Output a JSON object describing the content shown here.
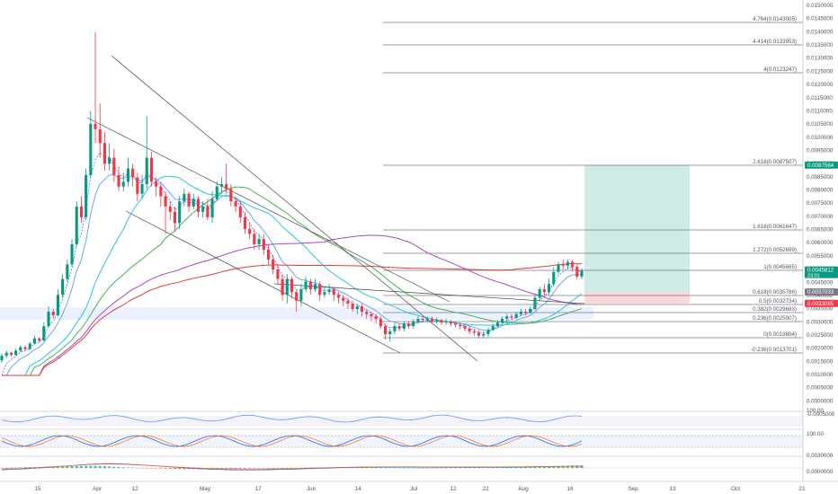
{
  "chart_data": {
    "type": "candlestick",
    "scale": "log",
    "grid": false,
    "x_labels": [
      "15",
      "Apr",
      "12",
      "May",
      "17",
      "Jun",
      "14",
      "Jul",
      "12",
      "22",
      "Aug",
      "16",
      "Sep",
      "13",
      "Oct",
      "21"
    ],
    "y_tick_labels": [
      "0.0150000",
      "0.0145000",
      "0.0140000",
      "0.0135000",
      "0.0130000",
      "0.0125000",
      "0.0120000",
      "0.0115000",
      "0.0110000",
      "0.0105000",
      "0.0100000",
      "0.0095000",
      "0.0090000",
      "0.0085000",
      "0.0080000",
      "0.0075000",
      "0.0070000",
      "0.0065000",
      "0.0060000",
      "0.0055000",
      "0.0050000",
      "0.0045000",
      "0.0040000",
      "0.0035000",
      "0.0030000",
      "0.0025000",
      "0.0020000",
      "0.0015000",
      "0.0010000",
      "0.0005000",
      "0.0000000",
      "-0.0005000"
    ],
    "fib_levels": [
      {
        "label": "4.764(0.0143005)",
        "value": 0.0143005
      },
      {
        "label": "4.414(0.0133953)",
        "value": 0.0133953
      },
      {
        "label": "4(0.0123247)",
        "value": 0.0123247
      },
      {
        "label": "2.618(0.0087507)",
        "value": 0.0087507
      },
      {
        "label": "1.618(0.0061647)",
        "value": 0.0061647
      },
      {
        "label": "1.272(0.0052699)",
        "value": 0.0052699
      },
      {
        "label": "1(0.0045665)",
        "value": 0.0045665
      },
      {
        "label": "0.618(0.0035786)",
        "value": 0.0035786
      },
      {
        "label": "0.5(0.0032734)",
        "value": 0.0032734
      },
      {
        "label": "0.382(0.0029683)",
        "value": 0.0029683
      },
      {
        "label": "0.236(0.0025907)",
        "value": 0.0025907
      },
      {
        "label": "0(0.0019804)",
        "value": 0.0019804
      },
      {
        "label": "-0.236(0.0013701)",
        "value": 0.0013701
      }
    ],
    "price_tags": [
      {
        "text": "0.0087564",
        "value": 0.0087564,
        "color": "#089981"
      },
      {
        "text": "0.0045812",
        "value": 0.0045812,
        "color": "#089981",
        "sub": "23:01"
      },
      {
        "text": "0.0037033",
        "value": 0.0037033,
        "color": "#787b86"
      },
      {
        "text": "0.0033085",
        "value": 0.0033085,
        "color": "#f23645"
      }
    ],
    "position": {
      "entry": 0.0037033,
      "target": 0.0087564,
      "stop": 0.0033085
    },
    "candles": [
      {
        "o": 0.00115,
        "c": 0.00128,
        "h": 0.00135,
        "l": 0.00108
      },
      {
        "o": 0.00128,
        "c": 0.00138,
        "h": 0.00145,
        "l": 0.00122
      },
      {
        "o": 0.00138,
        "c": 0.00131,
        "h": 0.00142,
        "l": 0.00125
      },
      {
        "o": 0.00131,
        "c": 0.00145,
        "h": 0.00152,
        "l": 0.00128
      },
      {
        "o": 0.00145,
        "c": 0.00158,
        "h": 0.00165,
        "l": 0.0014
      },
      {
        "o": 0.00158,
        "c": 0.0015,
        "h": 0.00163,
        "l": 0.00145
      },
      {
        "o": 0.0015,
        "c": 0.00172,
        "h": 0.0018,
        "l": 0.00148
      },
      {
        "o": 0.00172,
        "c": 0.00195,
        "h": 0.00205,
        "l": 0.00168
      },
      {
        "o": 0.00195,
        "c": 0.00185,
        "h": 0.002,
        "l": 0.00178
      },
      {
        "o": 0.00185,
        "c": 0.0024,
        "h": 0.00255,
        "l": 0.00182
      },
      {
        "o": 0.0024,
        "c": 0.003,
        "h": 0.0032,
        "l": 0.00235
      },
      {
        "o": 0.003,
        "c": 0.00285,
        "h": 0.0031,
        "l": 0.0027
      },
      {
        "o": 0.00285,
        "c": 0.0036,
        "h": 0.0038,
        "l": 0.0028
      },
      {
        "o": 0.0036,
        "c": 0.0042,
        "h": 0.0044,
        "l": 0.0035
      },
      {
        "o": 0.0042,
        "c": 0.0048,
        "h": 0.005,
        "l": 0.0041
      },
      {
        "o": 0.0048,
        "c": 0.0056,
        "h": 0.0058,
        "l": 0.0047
      },
      {
        "o": 0.0056,
        "c": 0.007,
        "h": 0.0072,
        "l": 0.0055
      },
      {
        "o": 0.007,
        "c": 0.0066,
        "h": 0.0074,
        "l": 0.0064
      },
      {
        "o": 0.0066,
        "c": 0.0083,
        "h": 0.0086,
        "l": 0.0065
      },
      {
        "o": 0.0083,
        "c": 0.0102,
        "h": 0.0107,
        "l": 0.0082
      },
      {
        "o": 0.0102,
        "c": 0.01,
        "h": 0.0139,
        "l": 0.0095
      },
      {
        "o": 0.01,
        "c": 0.0095,
        "h": 0.011,
        "l": 0.009
      },
      {
        "o": 0.0095,
        "c": 0.0088,
        "h": 0.0099,
        "l": 0.0085
      },
      {
        "o": 0.0088,
        "c": 0.009,
        "h": 0.0095,
        "l": 0.0085
      },
      {
        "o": 0.009,
        "c": 0.0083,
        "h": 0.0093,
        "l": 0.008
      },
      {
        "o": 0.0083,
        "c": 0.0078,
        "h": 0.0087,
        "l": 0.0076
      },
      {
        "o": 0.0078,
        "c": 0.008,
        "h": 0.0084,
        "l": 0.0076
      },
      {
        "o": 0.008,
        "c": 0.0086,
        "h": 0.009,
        "l": 0.0078
      },
      {
        "o": 0.0086,
        "c": 0.0082,
        "h": 0.0088,
        "l": 0.0078
      },
      {
        "o": 0.0082,
        "c": 0.0075,
        "h": 0.0084,
        "l": 0.0072
      },
      {
        "o": 0.0075,
        "c": 0.0079,
        "h": 0.0083,
        "l": 0.0073
      },
      {
        "o": 0.0079,
        "c": 0.009,
        "h": 0.0105,
        "l": 0.0077
      },
      {
        "o": 0.009,
        "c": 0.008,
        "h": 0.0092,
        "l": 0.0078
      },
      {
        "o": 0.008,
        "c": 0.0078,
        "h": 0.0082,
        "l": 0.0074
      },
      {
        "o": 0.0078,
        "c": 0.0074,
        "h": 0.008,
        "l": 0.007
      },
      {
        "o": 0.0074,
        "c": 0.007,
        "h": 0.0076,
        "l": 0.006
      },
      {
        "o": 0.007,
        "c": 0.0068,
        "h": 0.0072,
        "l": 0.0065
      },
      {
        "o": 0.0068,
        "c": 0.0064,
        "h": 0.007,
        "l": 0.0061
      },
      {
        "o": 0.0064,
        "c": 0.0072,
        "h": 0.0074,
        "l": 0.0062
      },
      {
        "o": 0.0072,
        "c": 0.0075,
        "h": 0.0077,
        "l": 0.007
      },
      {
        "o": 0.0075,
        "c": 0.007,
        "h": 0.0076,
        "l": 0.0068
      },
      {
        "o": 0.007,
        "c": 0.0073,
        "h": 0.0075,
        "l": 0.0069
      },
      {
        "o": 0.0073,
        "c": 0.0068,
        "h": 0.0074,
        "l": 0.0066
      },
      {
        "o": 0.0068,
        "c": 0.007,
        "h": 0.0072,
        "l": 0.0066
      },
      {
        "o": 0.007,
        "c": 0.0066,
        "h": 0.0073,
        "l": 0.0065
      },
      {
        "o": 0.0066,
        "c": 0.0073,
        "h": 0.0076,
        "l": 0.0064
      },
      {
        "o": 0.0073,
        "c": 0.0078,
        "h": 0.008,
        "l": 0.0072
      },
      {
        "o": 0.0078,
        "c": 0.0079,
        "h": 0.0082,
        "l": 0.0075
      },
      {
        "o": 0.0079,
        "c": 0.0077,
        "h": 0.0088,
        "l": 0.0075
      },
      {
        "o": 0.0077,
        "c": 0.0072,
        "h": 0.0079,
        "l": 0.007
      },
      {
        "o": 0.0072,
        "c": 0.007,
        "h": 0.0074,
        "l": 0.0068
      },
      {
        "o": 0.007,
        "c": 0.0066,
        "h": 0.0072,
        "l": 0.0064
      },
      {
        "o": 0.0066,
        "c": 0.0062,
        "h": 0.0068,
        "l": 0.006
      },
      {
        "o": 0.0062,
        "c": 0.006,
        "h": 0.0064,
        "l": 0.0058
      },
      {
        "o": 0.006,
        "c": 0.0056,
        "h": 0.0062,
        "l": 0.0054
      },
      {
        "o": 0.0056,
        "c": 0.0058,
        "h": 0.006,
        "l": 0.0054
      },
      {
        "o": 0.0058,
        "c": 0.0054,
        "h": 0.006,
        "l": 0.0052
      },
      {
        "o": 0.0054,
        "c": 0.005,
        "h": 0.0056,
        "l": 0.0048
      },
      {
        "o": 0.005,
        "c": 0.0046,
        "h": 0.0052,
        "l": 0.0044
      },
      {
        "o": 0.0046,
        "c": 0.0042,
        "h": 0.0048,
        "l": 0.004
      },
      {
        "o": 0.0042,
        "c": 0.0036,
        "h": 0.0044,
        "l": 0.0034
      },
      {
        "o": 0.0036,
        "c": 0.0042,
        "h": 0.0044,
        "l": 0.0033
      },
      {
        "o": 0.0042,
        "c": 0.0037,
        "h": 0.0043,
        "l": 0.0035
      },
      {
        "o": 0.0037,
        "c": 0.0034,
        "h": 0.0038,
        "l": 0.003
      },
      {
        "o": 0.0034,
        "c": 0.0038,
        "h": 0.004,
        "l": 0.0032
      },
      {
        "o": 0.0038,
        "c": 0.0041,
        "h": 0.0043,
        "l": 0.0037
      },
      {
        "o": 0.0041,
        "c": 0.0038,
        "h": 0.0042,
        "l": 0.0036
      },
      {
        "o": 0.0038,
        "c": 0.004,
        "h": 0.0042,
        "l": 0.0037
      },
      {
        "o": 0.004,
        "c": 0.0036,
        "h": 0.0041,
        "l": 0.0034
      },
      {
        "o": 0.0036,
        "c": 0.0037,
        "h": 0.0039,
        "l": 0.0035
      },
      {
        "o": 0.0037,
        "c": 0.0038,
        "h": 0.004,
        "l": 0.0036
      },
      {
        "o": 0.0038,
        "c": 0.0036,
        "h": 0.0039,
        "l": 0.0034
      },
      {
        "o": 0.0036,
        "c": 0.0035,
        "h": 0.0037,
        "l": 0.0033
      },
      {
        "o": 0.0035,
        "c": 0.0034,
        "h": 0.0036,
        "l": 0.0032
      },
      {
        "o": 0.0034,
        "c": 0.0033,
        "h": 0.0035,
        "l": 0.0031
      },
      {
        "o": 0.0033,
        "c": 0.0031,
        "h": 0.0034,
        "l": 0.003
      },
      {
        "o": 0.0031,
        "c": 0.0032,
        "h": 0.0033,
        "l": 0.0029
      },
      {
        "o": 0.0032,
        "c": 0.003,
        "h": 0.0033,
        "l": 0.0028
      },
      {
        "o": 0.003,
        "c": 0.0029,
        "h": 0.0031,
        "l": 0.0027
      },
      {
        "o": 0.0029,
        "c": 0.0028,
        "h": 0.003,
        "l": 0.0026
      },
      {
        "o": 0.0028,
        "c": 0.0027,
        "h": 0.0029,
        "l": 0.0025
      },
      {
        "o": 0.0027,
        "c": 0.0024,
        "h": 0.0028,
        "l": 0.0023
      },
      {
        "o": 0.0024,
        "c": 0.0021,
        "h": 0.0025,
        "l": 0.0019
      },
      {
        "o": 0.0021,
        "c": 0.0022,
        "h": 0.0023,
        "l": 0.0018
      },
      {
        "o": 0.0022,
        "c": 0.0024,
        "h": 0.0025,
        "l": 0.0021
      },
      {
        "o": 0.0024,
        "c": 0.0023,
        "h": 0.0025,
        "l": 0.0022
      },
      {
        "o": 0.0023,
        "c": 0.0025,
        "h": 0.0026,
        "l": 0.0022
      },
      {
        "o": 0.0025,
        "c": 0.0024,
        "h": 0.0026,
        "l": 0.0023
      },
      {
        "o": 0.0024,
        "c": 0.0026,
        "h": 0.0027,
        "l": 0.0023
      },
      {
        "o": 0.0026,
        "c": 0.0027,
        "h": 0.0028,
        "l": 0.0025
      },
      {
        "o": 0.0027,
        "c": 0.00265,
        "h": 0.0028,
        "l": 0.00255
      },
      {
        "o": 0.00265,
        "c": 0.0027,
        "h": 0.0028,
        "l": 0.00255
      },
      {
        "o": 0.0027,
        "c": 0.0026,
        "h": 0.0028,
        "l": 0.0025
      },
      {
        "o": 0.0026,
        "c": 0.00265,
        "h": 0.00275,
        "l": 0.0025
      },
      {
        "o": 0.00265,
        "c": 0.00255,
        "h": 0.0027,
        "l": 0.00245
      },
      {
        "o": 0.00255,
        "c": 0.0026,
        "h": 0.0027,
        "l": 0.00245
      },
      {
        "o": 0.0026,
        "c": 0.0025,
        "h": 0.00265,
        "l": 0.0024
      },
      {
        "o": 0.0025,
        "c": 0.00245,
        "h": 0.0026,
        "l": 0.00235
      },
      {
        "o": 0.00245,
        "c": 0.0024,
        "h": 0.00255,
        "l": 0.0023
      },
      {
        "o": 0.0024,
        "c": 0.0023,
        "h": 0.0025,
        "l": 0.0022
      },
      {
        "o": 0.0023,
        "c": 0.0022,
        "h": 0.0024,
        "l": 0.0021
      },
      {
        "o": 0.0022,
        "c": 0.00215,
        "h": 0.0023,
        "l": 0.00205
      },
      {
        "o": 0.00215,
        "c": 0.00205,
        "h": 0.00225,
        "l": 0.00195
      },
      {
        "o": 0.00205,
        "c": 0.0021,
        "h": 0.0022,
        "l": 0.00195
      },
      {
        "o": 0.0021,
        "c": 0.00225,
        "h": 0.00235,
        "l": 0.002
      },
      {
        "o": 0.00225,
        "c": 0.0024,
        "h": 0.0025,
        "l": 0.0022
      },
      {
        "o": 0.0024,
        "c": 0.00255,
        "h": 0.00265,
        "l": 0.00235
      },
      {
        "o": 0.00255,
        "c": 0.0027,
        "h": 0.0028,
        "l": 0.0025
      },
      {
        "o": 0.0027,
        "c": 0.0028,
        "h": 0.0029,
        "l": 0.0026
      },
      {
        "o": 0.0028,
        "c": 0.00275,
        "h": 0.0029,
        "l": 0.00265
      },
      {
        "o": 0.00275,
        "c": 0.0029,
        "h": 0.003,
        "l": 0.0027
      },
      {
        "o": 0.0029,
        "c": 0.003,
        "h": 0.0031,
        "l": 0.0028
      },
      {
        "o": 0.003,
        "c": 0.00295,
        "h": 0.0031,
        "l": 0.00285
      },
      {
        "o": 0.00295,
        "c": 0.0031,
        "h": 0.0032,
        "l": 0.0029
      },
      {
        "o": 0.0031,
        "c": 0.0035,
        "h": 0.0036,
        "l": 0.00305
      },
      {
        "o": 0.0035,
        "c": 0.0038,
        "h": 0.0039,
        "l": 0.0034
      },
      {
        "o": 0.0038,
        "c": 0.0037,
        "h": 0.004,
        "l": 0.0036
      },
      {
        "o": 0.0037,
        "c": 0.004,
        "h": 0.0042,
        "l": 0.0036
      },
      {
        "o": 0.004,
        "c": 0.0045,
        "h": 0.0047,
        "l": 0.0039
      },
      {
        "o": 0.0045,
        "c": 0.0048,
        "h": 0.0049,
        "l": 0.0044
      },
      {
        "o": 0.0048,
        "c": 0.00475,
        "h": 0.005,
        "l": 0.0046
      },
      {
        "o": 0.00475,
        "c": 0.0049,
        "h": 0.005,
        "l": 0.0046
      },
      {
        "o": 0.0049,
        "c": 0.0047,
        "h": 0.005,
        "l": 0.0045
      },
      {
        "o": 0.0047,
        "c": 0.0043,
        "h": 0.0048,
        "l": 0.0042
      },
      {
        "o": 0.0043,
        "c": 0.00458,
        "h": 0.00465,
        "l": 0.0042
      }
    ]
  }
}
